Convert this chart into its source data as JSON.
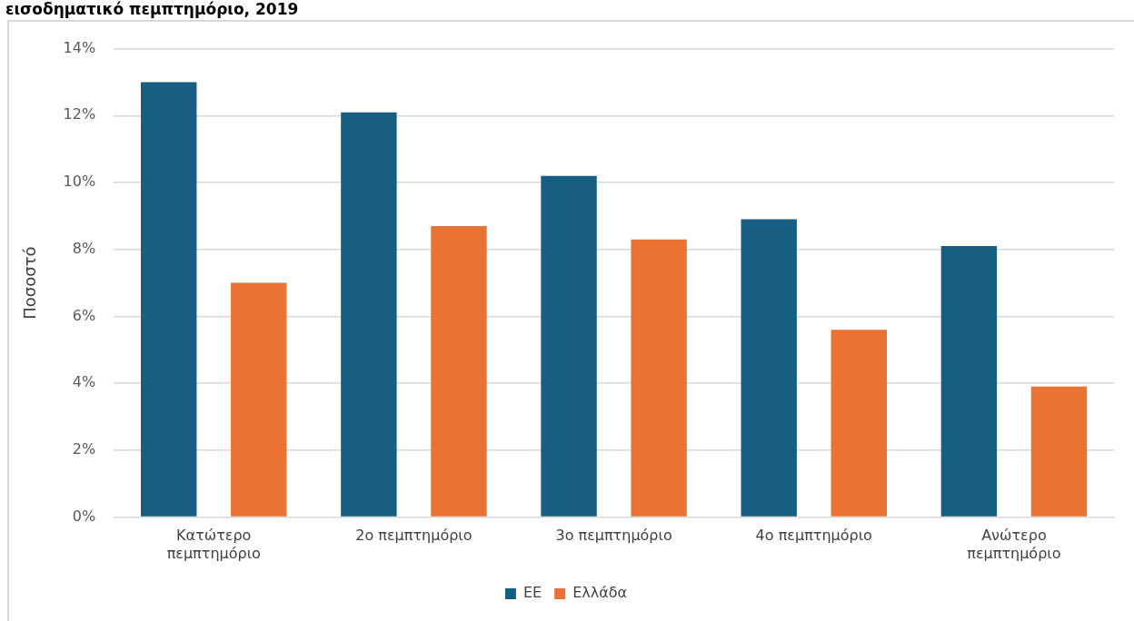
{
  "chart_data": {
    "type": "bar",
    "title": "εισοδηματικό πεμπτημόριο, 2019",
    "ylabel": "Ποσοστό",
    "categories": [
      "Κατώτερο πεμπτημόριο",
      "2ο πεμπτημόριο",
      "3ο πεμπτημόριο",
      "4ο πεμπτημόριο",
      "Ανώτερο πεμπτημόριο"
    ],
    "series": [
      {
        "name": "ΕΕ",
        "color": "#175f82",
        "values": [
          13.0,
          12.1,
          10.2,
          8.9,
          8.1
        ]
      },
      {
        "name": "Ελλάδα",
        "color": "#ea7232",
        "values": [
          7.0,
          8.7,
          8.3,
          5.6,
          3.9
        ]
      }
    ],
    "ylim": [
      0,
      14
    ],
    "yticks": [
      {
        "value": 0,
        "label": "0%"
      },
      {
        "value": 2,
        "label": "2%"
      },
      {
        "value": 4,
        "label": "4%"
      },
      {
        "value": 6,
        "label": "6%"
      },
      {
        "value": 8,
        "label": "8%"
      },
      {
        "value": 10,
        "label": "10%"
      },
      {
        "value": 12,
        "label": "12%"
      },
      {
        "value": 14,
        "label": "14%"
      }
    ],
    "grid": "y",
    "legend": "bottom"
  }
}
